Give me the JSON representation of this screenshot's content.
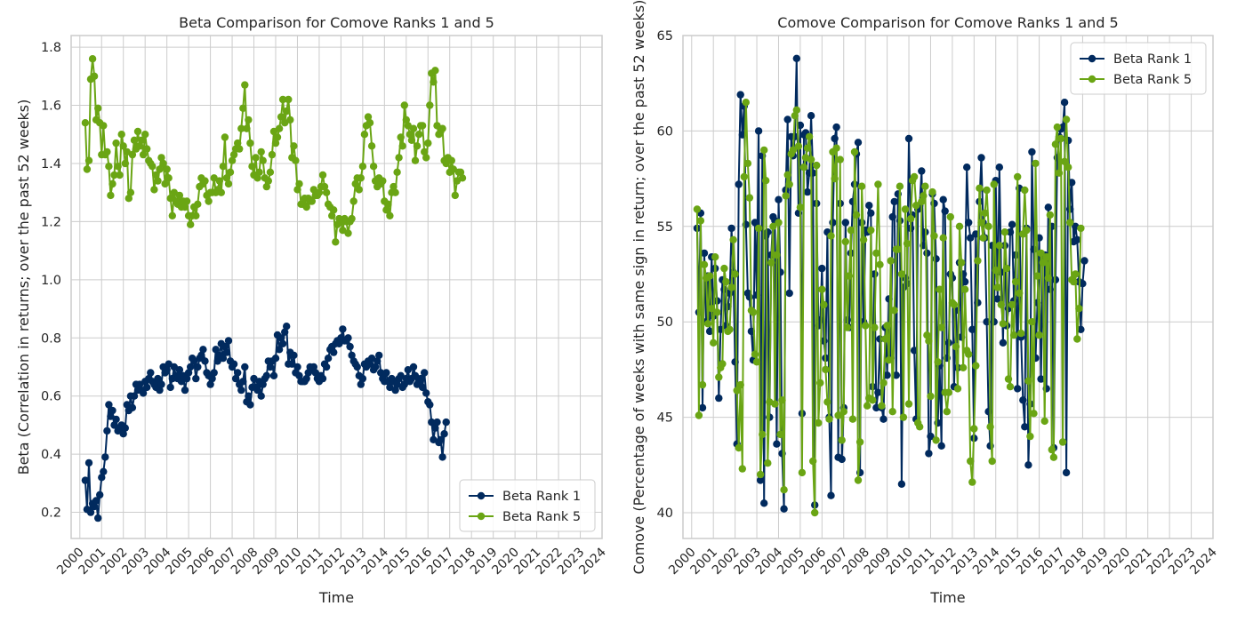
{
  "chart_data": [
    {
      "type": "line",
      "title": "Beta Comparison for Comove Ranks 1 and 5",
      "xlabel": "Time",
      "ylabel": "Beta (Correlation in returns; over the past 52 weeks)",
      "xlim": [
        1999.6,
        2024.0
      ],
      "ylim": [
        0.11,
        1.84
      ],
      "xticks": [
        "2000",
        "2001",
        "2002",
        "2003",
        "2004",
        "2005",
        "2006",
        "2007",
        "2008",
        "2009",
        "2010",
        "2011",
        "2012",
        "2013",
        "2014",
        "2015",
        "2016",
        "2017",
        "2018",
        "2019",
        "2020",
        "2021",
        "2022",
        "2023",
        "2024"
      ],
      "yticks": [
        "0.2",
        "0.4",
        "0.6",
        "0.8",
        "1.0",
        "1.2",
        "1.4",
        "1.6",
        "1.8"
      ],
      "grid": true,
      "legend_position": "lower-right",
      "x_start": 2000.25,
      "x_step": 0.0833333,
      "series": [
        {
          "name": "Beta Rank 1",
          "color": "#012a5e",
          "values": [
            0.31,
            0.21,
            0.37,
            0.2,
            0.23,
            0.22,
            0.24,
            0.18,
            0.26,
            0.32,
            0.34,
            0.39,
            0.48,
            0.57,
            0.53,
            0.55,
            0.5,
            0.52,
            0.48,
            0.49,
            0.5,
            0.47,
            0.49,
            0.57,
            0.55,
            0.6,
            0.56,
            0.6,
            0.64,
            0.62,
            0.64,
            0.62,
            0.61,
            0.65,
            0.63,
            0.66,
            0.68,
            0.65,
            0.64,
            0.63,
            0.66,
            0.62,
            0.64,
            0.7,
            0.68,
            0.69,
            0.71,
            0.63,
            0.66,
            0.7,
            0.67,
            0.66,
            0.69,
            0.65,
            0.67,
            0.62,
            0.66,
            0.68,
            0.7,
            0.73,
            0.72,
            0.66,
            0.7,
            0.73,
            0.74,
            0.76,
            0.72,
            0.68,
            0.67,
            0.64,
            0.66,
            0.68,
            0.76,
            0.72,
            0.74,
            0.78,
            0.73,
            0.77,
            0.75,
            0.79,
            0.72,
            0.7,
            0.71,
            0.66,
            0.68,
            0.64,
            0.62,
            0.65,
            0.7,
            0.58,
            0.6,
            0.57,
            0.63,
            0.66,
            0.63,
            0.62,
            0.65,
            0.6,
            0.64,
            0.66,
            0.67,
            0.72,
            0.7,
            0.72,
            0.67,
            0.73,
            0.81,
            0.76,
            0.8,
            0.78,
            0.82,
            0.84,
            0.71,
            0.75,
            0.71,
            0.74,
            0.68,
            0.7,
            0.67,
            0.65,
            0.65,
            0.65,
            0.66,
            0.68,
            0.7,
            0.69,
            0.7,
            0.68,
            0.66,
            0.65,
            0.67,
            0.66,
            0.71,
            0.7,
            0.73,
            0.76,
            0.77,
            0.75,
            0.78,
            0.79,
            0.78,
            0.8,
            0.83,
            0.79,
            0.79,
            0.8,
            0.77,
            0.74,
            0.72,
            0.71,
            0.7,
            0.67,
            0.64,
            0.66,
            0.71,
            0.7,
            0.72,
            0.71,
            0.73,
            0.69,
            0.7,
            0.72,
            0.74,
            0.68,
            0.66,
            0.65,
            0.68,
            0.65,
            0.63,
            0.66,
            0.65,
            0.62,
            0.64,
            0.66,
            0.67,
            0.63,
            0.64,
            0.66,
            0.69,
            0.65,
            0.66,
            0.7,
            0.67,
            0.64,
            0.65,
            0.66,
            0.63,
            0.68,
            0.61,
            0.58,
            0.57,
            0.51,
            0.45,
            0.49,
            0.51,
            0.44,
            0.45,
            0.39,
            0.47,
            0.51
          ]
        },
        {
          "name": "Beta Rank 5",
          "color": "#6aa514",
          "values": [
            1.54,
            1.38,
            1.41,
            1.69,
            1.76,
            1.7,
            1.55,
            1.59,
            1.54,
            1.43,
            1.53,
            1.43,
            1.44,
            1.39,
            1.29,
            1.33,
            1.36,
            1.47,
            1.39,
            1.36,
            1.5,
            1.46,
            1.4,
            1.44,
            1.28,
            1.3,
            1.43,
            1.48,
            1.45,
            1.51,
            1.46,
            1.48,
            1.43,
            1.5,
            1.45,
            1.41,
            1.4,
            1.39,
            1.31,
            1.36,
            1.34,
            1.38,
            1.42,
            1.4,
            1.33,
            1.38,
            1.35,
            1.28,
            1.22,
            1.3,
            1.27,
            1.26,
            1.29,
            1.25,
            1.27,
            1.25,
            1.27,
            1.22,
            1.19,
            1.22,
            1.25,
            1.22,
            1.26,
            1.32,
            1.35,
            1.33,
            1.34,
            1.29,
            1.27,
            1.3,
            1.3,
            1.35,
            1.3,
            1.31,
            1.34,
            1.3,
            1.39,
            1.49,
            1.35,
            1.33,
            1.37,
            1.41,
            1.43,
            1.45,
            1.47,
            1.45,
            1.52,
            1.59,
            1.67,
            1.52,
            1.55,
            1.47,
            1.39,
            1.36,
            1.42,
            1.35,
            1.37,
            1.44,
            1.41,
            1.35,
            1.32,
            1.34,
            1.37,
            1.43,
            1.51,
            1.47,
            1.49,
            1.52,
            1.56,
            1.62,
            1.54,
            1.58,
            1.62,
            1.55,
            1.42,
            1.46,
            1.41,
            1.31,
            1.33,
            1.26,
            1.26,
            1.28,
            1.25,
            1.28,
            1.27,
            1.27,
            1.31,
            1.29,
            1.29,
            1.3,
            1.32,
            1.36,
            1.32,
            1.3,
            1.26,
            1.25,
            1.22,
            1.24,
            1.13,
            1.19,
            1.21,
            1.2,
            1.17,
            1.21,
            1.2,
            1.16,
            1.2,
            1.21,
            1.27,
            1.33,
            1.35,
            1.31,
            1.35,
            1.39,
            1.5,
            1.53,
            1.56,
            1.54,
            1.46,
            1.39,
            1.34,
            1.32,
            1.35,
            1.33,
            1.34,
            1.27,
            1.24,
            1.26,
            1.22,
            1.3,
            1.32,
            1.3,
            1.37,
            1.42,
            1.49,
            1.46,
            1.6,
            1.55,
            1.53,
            1.5,
            1.48,
            1.52,
            1.41,
            1.46,
            1.5,
            1.53,
            1.53,
            1.44,
            1.42,
            1.47,
            1.6,
            1.71,
            1.68,
            1.72,
            1.53,
            1.5,
            1.51,
            1.52,
            1.41,
            1.4,
            1.42,
            1.37,
            1.41,
            1.38,
            1.29,
            1.34,
            1.37,
            1.37,
            1.35
          ]
        }
      ]
    },
    {
      "type": "line",
      "title": "Comove Comparison for Comove Ranks 1 and 5",
      "xlabel": "Time",
      "ylabel": "Comove (Percentage of weeks with same sign in return; over the past 52 weeks)",
      "xlim": [
        1999.6,
        2024.0
      ],
      "ylim": [
        38.65,
        65.0
      ],
      "xticks": [
        "2000",
        "2001",
        "2002",
        "2003",
        "2004",
        "2005",
        "2006",
        "2007",
        "2008",
        "2009",
        "2010",
        "2011",
        "2012",
        "2013",
        "2014",
        "2015",
        "2016",
        "2017",
        "2018",
        "2019",
        "2020",
        "2021",
        "2022",
        "2023",
        "2024"
      ],
      "yticks": [
        "40",
        "45",
        "50",
        "55",
        "60",
        "65"
      ],
      "grid": true,
      "legend_position": "upper-right",
      "x_start": 2000.25,
      "x_step": 0.0833333,
      "series": [
        {
          "name": "Beta Rank 1",
          "color": "#012a5e",
          "values": [
            54.9,
            50.5,
            55.7,
            45.5,
            53.6,
            50.0,
            52.4,
            49.5,
            53.4,
            50.3,
            52.8,
            51.1,
            46.0,
            49.6,
            52.2,
            51.7,
            49.8,
            50.8,
            51.5,
            54.9,
            52.6,
            47.9,
            43.6,
            57.2,
            61.9,
            59.8,
            61.3,
            55.1,
            51.5,
            51.3,
            49.5,
            48.0,
            55.2,
            51.4,
            60.0,
            41.7,
            58.7,
            40.5,
            54.5,
            54.7,
            45.0,
            53.5,
            55.5,
            55.3,
            43.6,
            56.4,
            52.6,
            43.1,
            40.2,
            56.9,
            60.6,
            51.5,
            59.7,
            58.7,
            59.7,
            63.8,
            55.7,
            60.3,
            45.2,
            59.8,
            59.9,
            56.8,
            57.8,
            60.8,
            57.8,
            40.4,
            56.2,
            49.8,
            50.1,
            52.8,
            49.0,
            48.1,
            54.7,
            45.0,
            40.9,
            55.2,
            59.6,
            60.2,
            42.9,
            56.2,
            42.8,
            45.5,
            55.2,
            50.1,
            49.7,
            53.6,
            56.3,
            57.2,
            58.8,
            59.4,
            42.1,
            55.2,
            50.0,
            54.8,
            54.7,
            56.1,
            55.7,
            46.6,
            52.5,
            45.5,
            46.3,
            49.1,
            45.5,
            44.9,
            49.7,
            47.2,
            51.2,
            48.1,
            55.5,
            56.3,
            47.2,
            56.7,
            55.3,
            41.5,
            51.8,
            52.3,
            52.0,
            59.6,
            54.9,
            55.6,
            48.5,
            44.9,
            55.9,
            56.1,
            57.9,
            54.0,
            54.7,
            53.6,
            43.1,
            44.0,
            56.7,
            56.2,
            53.3,
            44.7,
            47.7,
            43.5,
            56.4,
            55.8,
            48.1,
            48.9,
            52.5,
            52.3,
            46.6,
            50.6,
            47.6,
            53.1,
            49.2,
            52.5,
            52.1,
            58.1,
            55.2,
            54.4,
            49.6,
            43.9,
            54.6,
            51.0,
            56.3,
            58.6,
            55.2,
            54.4,
            50.0,
            45.3,
            43.5,
            54.0,
            50.0,
            57.4,
            51.2,
            58.1,
            52.6,
            48.9,
            54.0,
            49.8,
            50.7,
            54.7,
            55.1,
            51.1,
            53.5,
            46.5,
            57.0,
            49.2,
            45.9,
            44.5,
            54.9,
            42.5,
            45.7,
            58.9,
            53.8,
            48.1,
            51.0,
            54.4,
            47.0,
            53.4,
            53.5,
            46.5,
            56.0,
            51.7,
            55.0,
            43.4,
            52.2,
            58.6,
            59.7,
            60.1,
            60.2,
            61.5,
            42.1,
            59.5,
            55.9,
            57.3,
            54.2,
            55.0,
            54.3,
            52.1,
            49.6,
            52.0,
            53.2
          ]
        },
        {
          "name": "Beta Rank 5",
          "color": "#6aa514",
          "values": [
            55.9,
            45.1,
            55.3,
            46.7,
            53.0,
            52.3,
            49.9,
            52.4,
            50.7,
            48.9,
            53.4,
            50.5,
            47.1,
            47.6,
            47.8,
            52.8,
            52.1,
            49.5,
            49.6,
            51.8,
            54.3,
            52.5,
            46.4,
            43.4,
            46.7,
            42.3,
            57.6,
            61.5,
            58.3,
            56.5,
            50.6,
            50.5,
            48.3,
            47.9,
            54.9,
            42.0,
            44.1,
            59.0,
            57.4,
            42.6,
            45.8,
            53.1,
            55.0,
            45.7,
            53.5,
            55.2,
            44.1,
            45.9,
            41.2,
            56.6,
            57.7,
            57.2,
            58.8,
            59.0,
            60.8,
            61.1,
            59.2,
            56.0,
            42.1,
            58.1,
            58.6,
            59.1,
            59.7,
            58.5,
            42.7,
            40.0,
            58.2,
            44.7,
            46.8,
            51.7,
            50.9,
            47.5,
            45.8,
            44.9,
            54.5,
            58.9,
            57.5,
            59.1,
            45.1,
            58.5,
            43.8,
            45.3,
            54.2,
            49.7,
            52.4,
            54.8,
            44.9,
            58.9,
            55.6,
            41.7,
            43.7,
            57.1,
            54.3,
            49.8,
            45.6,
            46.0,
            54.8,
            45.9,
            49.7,
            53.6,
            57.2,
            53.0,
            45.6,
            46.8,
            49.1,
            49.8,
            48.0,
            53.2,
            45.3,
            50.6,
            53.8,
            53.8,
            57.1,
            52.5,
            45.0,
            55.9,
            54.1,
            45.7,
            55.4,
            57.4,
            57.6,
            56.1,
            44.7,
            44.5,
            56.3,
            56.6,
            57.1,
            49.3,
            49.0,
            46.1,
            56.8,
            54.5,
            43.8,
            47.9,
            51.7,
            49.7,
            54.4,
            46.3,
            45.3,
            46.3,
            55.5,
            51.0,
            50.9,
            48.7,
            46.5,
            55.0,
            53.1,
            47.6,
            51.7,
            48.5,
            48.3,
            42.7,
            41.6,
            44.4,
            47.7,
            53.2,
            57.0,
            55.2,
            54.4,
            55.7,
            56.9,
            55.0,
            44.5,
            42.7,
            57.2,
            52.7,
            51.8,
            54.0,
            50.9,
            49.9,
            54.7,
            52.8,
            47.0,
            46.6,
            50.9,
            49.3,
            52.1,
            57.6,
            51.5,
            49.4,
            54.6,
            56.9,
            54.8,
            46.9,
            44.0,
            50.0,
            45.2,
            58.3,
            52.4,
            49.3,
            53.6,
            53.1,
            44.8,
            53.4,
            52.3,
            55.6,
            43.3,
            42.9,
            59.3,
            60.2,
            57.8,
            59.6,
            43.7,
            58.4,
            60.6,
            58.1,
            55.2,
            52.2,
            52.1,
            52.5,
            49.1,
            50.7,
            54.9
          ]
        }
      ]
    }
  ]
}
